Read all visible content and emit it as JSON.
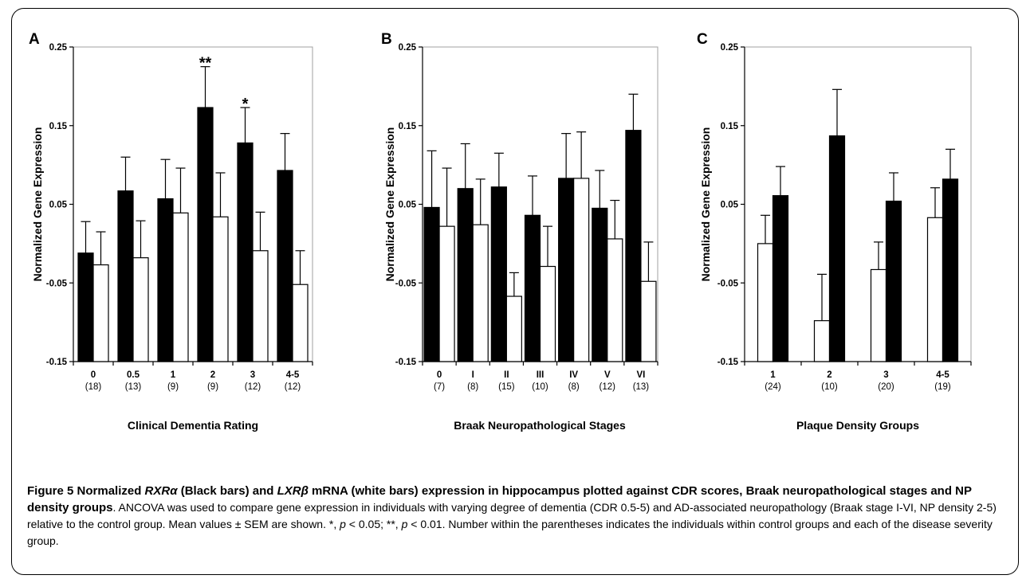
{
  "chart_data": [
    {
      "panel": "A",
      "type": "bar",
      "categories": [
        "0",
        "0.5",
        "1",
        "2",
        "3",
        "4-5"
      ],
      "group_sizes": [
        "(18)",
        "(13)",
        "(9)",
        "(9)",
        "(12)",
        "(12)"
      ],
      "xlabel": "Clinical Dementia Rating",
      "ylabel": "Normalized Gene Expression",
      "ylim": [
        -0.15,
        0.25
      ],
      "yticks": [
        "0.25",
        "0.15",
        "0.05",
        "-0.05",
        "-0.15"
      ],
      "order": [
        "black",
        "white"
      ],
      "series": [
        {
          "fill": "#000000",
          "values": [
            -0.012,
            0.067,
            0.057,
            0.173,
            0.128,
            0.093
          ],
          "errors": [
            0.04,
            0.043,
            0.05,
            0.052,
            0.045,
            0.047
          ]
        },
        {
          "fill": "#ffffff",
          "values": [
            -0.027,
            -0.018,
            0.039,
            0.034,
            -0.009,
            -0.052
          ],
          "errors": [
            0.042,
            0.047,
            0.057,
            0.056,
            0.049,
            0.043
          ]
        }
      ],
      "annotations": [
        {
          "category": "2",
          "text": "**"
        },
        {
          "category": "3",
          "text": "*"
        }
      ]
    },
    {
      "panel": "B",
      "type": "bar",
      "categories": [
        "0",
        "I",
        "II",
        "III",
        "IV",
        "V",
        "VI"
      ],
      "group_sizes": [
        "(7)",
        "(8)",
        "(15)",
        "(10)",
        "(8)",
        "(12)",
        "(13)"
      ],
      "xlabel": "Braak Neuropathological Stages",
      "ylabel": "Normalized Gene Expression",
      "ylim": [
        -0.15,
        0.25
      ],
      "yticks": [
        "0.25",
        "0.15",
        "0.05",
        "-0.05",
        "-0.15"
      ],
      "order": [
        "black",
        "white"
      ],
      "series": [
        {
          "fill": "#000000",
          "values": [
            0.046,
            0.07,
            0.072,
            0.036,
            0.083,
            0.045,
            0.144
          ],
          "errors": [
            0.072,
            0.057,
            0.043,
            0.05,
            0.057,
            0.048,
            0.046
          ]
        },
        {
          "fill": "#ffffff",
          "values": [
            0.022,
            0.024,
            -0.067,
            -0.029,
            0.083,
            0.006,
            -0.048
          ],
          "errors": [
            0.074,
            0.058,
            0.03,
            0.051,
            0.059,
            0.049,
            0.05
          ]
        }
      ],
      "annotations": []
    },
    {
      "panel": "C",
      "type": "bar",
      "categories": [
        "1",
        "2",
        "3",
        "4-5"
      ],
      "group_sizes": [
        "(24)",
        "(10)",
        "(20)",
        "(19)"
      ],
      "xlabel": "Plaque Density Groups",
      "ylabel": "Normalized Gene Expression",
      "ylim": [
        -0.15,
        0.25
      ],
      "yticks": [
        "0.25",
        "0.15",
        "0.05",
        "-0.05",
        "-0.15"
      ],
      "order": [
        "white",
        "black"
      ],
      "series": [
        {
          "fill": "#000000",
          "values": [
            0.061,
            0.137,
            0.054,
            0.082
          ],
          "errors": [
            0.037,
            0.059,
            0.036,
            0.038
          ]
        },
        {
          "fill": "#ffffff",
          "values": [
            0.0,
            -0.098,
            -0.033,
            0.033
          ],
          "errors": [
            0.036,
            0.059,
            0.035,
            0.038
          ]
        }
      ],
      "annotations": []
    }
  ],
  "caption": {
    "figure_label": "Figure 5",
    "title_a": " Normalized ",
    "gene1": "RXRα",
    "title_b": " (Black bars) and ",
    "gene2": "LXRβ",
    "title_c": " mRNA (white bars) expression in hippocampus plotted against CDR scores, Braak neuropathological stages and NP density groups",
    "body_a": ". ANCOVA was used to compare gene expression in individuals with varying degree of dementia (CDR 0.5-5) and AD-associated neuropathology (Braak stage I-VI, NP density 2-5) relative to the control group. Mean values ± SEM are shown. *, ",
    "p1": "p",
    "body_b": " < 0.05; **, ",
    "p2": "p",
    "body_c": " < 0.01. Number within the parentheses indicates the individuals within control groups and each of the disease severity group."
  }
}
